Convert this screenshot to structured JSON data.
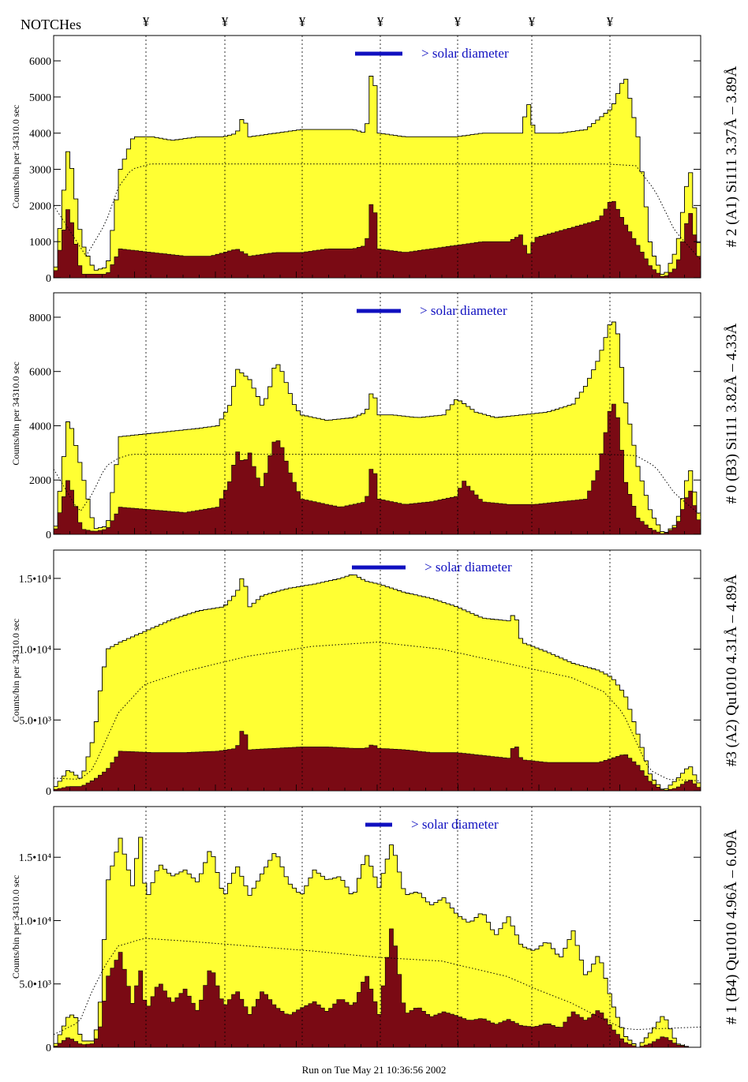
{
  "header": {
    "notches_label": "NOTCHes",
    "notch_symbol": "¥",
    "notch_count": 7
  },
  "footer": {
    "run_text": "Run on Tue May 21 10:36:56 2002"
  },
  "colors": {
    "total": "#ffff33",
    "background": "#7a0a14",
    "marker": "#1010c0"
  },
  "chart_data": [
    {
      "type": "area",
      "title": "# 2 (A1) Si111  3.37Å – 3.89Å",
      "ylabel": "Counts/bin per  34310.0 sec",
      "marker_label": "> solar diameter",
      "ylim": [
        0,
        6700
      ],
      "yticks": [
        0,
        1000,
        2000,
        3000,
        4000,
        5000,
        6000
      ],
      "ytick_labels": [
        "0",
        "1000",
        "2000",
        "3000",
        "4000",
        "5000",
        "6000"
      ],
      "series": [
        {
          "name": "total",
          "x": [
            0.0,
            0.02,
            0.04,
            0.06,
            0.08,
            0.1,
            0.12,
            0.15,
            0.18,
            0.22,
            0.26,
            0.28,
            0.29,
            0.3,
            0.34,
            0.38,
            0.42,
            0.46,
            0.48,
            0.49,
            0.5,
            0.54,
            0.58,
            0.62,
            0.66,
            0.7,
            0.72,
            0.73,
            0.74,
            0.78,
            0.82,
            0.86,
            0.88,
            0.9,
            0.92,
            0.94,
            0.96,
            0.98,
            1.0
          ],
          "values": [
            300,
            3700,
            1000,
            200,
            300,
            3000,
            3900,
            3900,
            3800,
            3900,
            3900,
            4000,
            4500,
            3900,
            4000,
            4100,
            4100,
            4100,
            4000,
            6100,
            4000,
            3900,
            3900,
            3900,
            4000,
            4000,
            4000,
            4900,
            4000,
            4000,
            4100,
            4700,
            5600,
            3900,
            800,
            0,
            800,
            3100,
            0
          ]
        },
        {
          "name": "background",
          "x": [
            0.0,
            0.02,
            0.04,
            0.06,
            0.08,
            0.1,
            0.15,
            0.2,
            0.24,
            0.26,
            0.28,
            0.3,
            0.34,
            0.38,
            0.42,
            0.46,
            0.48,
            0.49,
            0.5,
            0.54,
            0.58,
            0.62,
            0.66,
            0.7,
            0.72,
            0.73,
            0.74,
            0.78,
            0.8,
            0.84,
            0.86,
            0.88,
            0.9,
            0.92,
            0.94,
            0.96,
            0.98,
            1.0
          ],
          "values": [
            200,
            2000,
            100,
            100,
            100,
            800,
            700,
            600,
            600,
            700,
            800,
            600,
            700,
            700,
            800,
            800,
            900,
            2400,
            800,
            700,
            800,
            900,
            1000,
            1000,
            1200,
            600,
            1100,
            1300,
            1400,
            1600,
            2200,
            1500,
            900,
            300,
            0,
            300,
            1900,
            0
          ]
        },
        {
          "name": "model",
          "x": [
            0.0,
            0.05,
            0.08,
            0.1,
            0.12,
            0.15,
            0.2,
            0.3,
            0.5,
            0.7,
            0.85,
            0.9,
            0.93,
            0.96,
            1.0
          ],
          "values": [
            2000,
            600,
            1500,
            2500,
            3000,
            3150,
            3150,
            3150,
            3150,
            3150,
            3150,
            3100,
            2400,
            1300,
            500
          ]
        }
      ]
    },
    {
      "type": "area",
      "title": "# 0 (B3) Si111  3.82Å – 4.33Å",
      "ylabel": "Counts/bin per  34310.0 sec",
      "marker_label": "> solar diameter",
      "ylim": [
        0,
        8900
      ],
      "yticks": [
        0,
        2000,
        4000,
        6000,
        8000
      ],
      "ytick_labels": [
        "0",
        "2000",
        "4000",
        "6000",
        "8000"
      ],
      "series": [
        {
          "name": "total",
          "x": [
            0.0,
            0.02,
            0.04,
            0.06,
            0.08,
            0.1,
            0.14,
            0.18,
            0.22,
            0.25,
            0.27,
            0.28,
            0.3,
            0.32,
            0.33,
            0.34,
            0.35,
            0.37,
            0.38,
            0.4,
            0.42,
            0.46,
            0.48,
            0.49,
            0.5,
            0.52,
            0.56,
            0.6,
            0.62,
            0.65,
            0.68,
            0.72,
            0.76,
            0.8,
            0.82,
            0.84,
            0.86,
            0.87,
            0.88,
            0.9,
            0.92,
            0.94,
            0.96,
            0.98,
            1.0
          ],
          "values": [
            300,
            4400,
            2400,
            200,
            300,
            3600,
            3700,
            3800,
            3900,
            4000,
            4800,
            6100,
            5700,
            4700,
            5300,
            6400,
            6000,
            4700,
            4400,
            4300,
            4200,
            4300,
            4500,
            5400,
            4400,
            4400,
            4300,
            4400,
            5000,
            4500,
            4300,
            4400,
            4500,
            4800,
            5500,
            6500,
            8000,
            7300,
            5000,
            2500,
            800,
            0,
            400,
            2500,
            0
          ]
        },
        {
          "name": "background",
          "x": [
            0.0,
            0.02,
            0.04,
            0.06,
            0.08,
            0.1,
            0.15,
            0.2,
            0.25,
            0.27,
            0.28,
            0.29,
            0.3,
            0.31,
            0.32,
            0.33,
            0.34,
            0.35,
            0.36,
            0.38,
            0.4,
            0.44,
            0.48,
            0.49,
            0.5,
            0.54,
            0.58,
            0.62,
            0.63,
            0.64,
            0.66,
            0.7,
            0.74,
            0.78,
            0.82,
            0.84,
            0.86,
            0.87,
            0.88,
            0.9,
            0.92,
            0.94,
            0.96,
            0.98,
            1.0
          ],
          "values": [
            200,
            2100,
            200,
            100,
            200,
            1000,
            900,
            800,
            1000,
            2000,
            3100,
            2600,
            3000,
            2200,
            1700,
            2800,
            3600,
            3200,
            2400,
            1300,
            1200,
            1000,
            1200,
            2800,
            1300,
            1100,
            1200,
            1400,
            2000,
            1700,
            1200,
            1100,
            1100,
            1200,
            1300,
            2500,
            5000,
            4200,
            2000,
            600,
            200,
            0,
            300,
            1700,
            0
          ]
        },
        {
          "name": "model",
          "x": [
            0.0,
            0.04,
            0.06,
            0.08,
            0.1,
            0.12,
            0.15,
            0.3,
            0.5,
            0.7,
            0.85,
            0.9,
            0.93,
            0.96,
            1.0
          ],
          "values": [
            2400,
            800,
            1500,
            2500,
            2800,
            2950,
            2950,
            2950,
            2950,
            2950,
            2950,
            2900,
            2500,
            1500,
            700
          ]
        }
      ]
    },
    {
      "type": "area",
      "title": "#3 (A2) Qu1010  4.31Å – 4.89Å",
      "ylabel": "Counts/bin per  34310.0 sec",
      "marker_label": "> solar diameter",
      "ylim": [
        0,
        17000
      ],
      "yticks": [
        0,
        5000,
        10000,
        15000
      ],
      "ytick_labels": [
        "0",
        "5.0•10³",
        "1.0•10⁴",
        "1.5•10⁴"
      ],
      "series": [
        {
          "name": "total",
          "x": [
            0.0,
            0.02,
            0.04,
            0.06,
            0.07,
            0.08,
            0.1,
            0.14,
            0.18,
            0.22,
            0.26,
            0.28,
            0.29,
            0.3,
            0.32,
            0.36,
            0.4,
            0.44,
            0.46,
            0.48,
            0.5,
            0.54,
            0.58,
            0.62,
            0.66,
            0.7,
            0.71,
            0.72,
            0.76,
            0.8,
            0.84,
            0.86,
            0.88,
            0.9,
            0.92,
            0.94,
            0.96,
            0.98,
            1.0
          ],
          "values": [
            300,
            1500,
            800,
            4000,
            7500,
            10000,
            10500,
            11300,
            12100,
            12700,
            13000,
            14000,
            15300,
            13000,
            13800,
            14300,
            14600,
            15000,
            15300,
            14800,
            14600,
            14000,
            13600,
            13000,
            12200,
            12000,
            12600,
            10500,
            9800,
            9000,
            8500,
            8000,
            6800,
            4000,
            1000,
            0,
            800,
            1800,
            0
          ]
        },
        {
          "name": "background",
          "x": [
            0.0,
            0.02,
            0.04,
            0.06,
            0.08,
            0.1,
            0.15,
            0.2,
            0.25,
            0.28,
            0.29,
            0.3,
            0.34,
            0.38,
            0.42,
            0.46,
            0.48,
            0.49,
            0.5,
            0.54,
            0.58,
            0.62,
            0.66,
            0.7,
            0.71,
            0.72,
            0.76,
            0.8,
            0.84,
            0.86,
            0.88,
            0.9,
            0.92,
            0.94,
            0.96,
            0.98,
            1.0
          ],
          "values": [
            100,
            300,
            300,
            800,
            1500,
            2800,
            2700,
            2700,
            2800,
            3000,
            4600,
            2900,
            3000,
            3100,
            3100,
            3000,
            3000,
            3300,
            3000,
            2900,
            2700,
            2700,
            2500,
            2300,
            3400,
            2200,
            2000,
            2000,
            2000,
            2300,
            2600,
            1800,
            600,
            0,
            200,
            800,
            0
          ]
        },
        {
          "name": "model",
          "x": [
            0.0,
            0.04,
            0.06,
            0.08,
            0.1,
            0.14,
            0.2,
            0.3,
            0.4,
            0.5,
            0.6,
            0.7,
            0.8,
            0.85,
            0.88,
            0.9,
            0.92,
            0.95,
            1.0
          ],
          "values": [
            900,
            800,
            1500,
            3500,
            5500,
            7500,
            8400,
            9500,
            10200,
            10500,
            10000,
            9000,
            8000,
            7000,
            5500,
            3500,
            1500,
            800,
            700
          ]
        }
      ]
    },
    {
      "type": "area",
      "title": "# 1 (B4) Qu1010  4.96Å – 6.09Å",
      "ylabel": "Counts/bin per  34310.0 sec",
      "marker_label": "> solar diameter",
      "ylim": [
        0,
        19000
      ],
      "yticks": [
        0,
        5000,
        10000,
        15000
      ],
      "ytick_labels": [
        "0",
        "5.0•10³",
        "1.0•10⁴",
        "1.5•10⁴"
      ],
      "series": [
        {
          "name": "total",
          "x": [
            0.0,
            0.02,
            0.03,
            0.04,
            0.06,
            0.07,
            0.08,
            0.1,
            0.12,
            0.13,
            0.14,
            0.16,
            0.18,
            0.2,
            0.22,
            0.24,
            0.26,
            0.28,
            0.3,
            0.32,
            0.34,
            0.36,
            0.38,
            0.4,
            0.42,
            0.44,
            0.46,
            0.48,
            0.5,
            0.52,
            0.54,
            0.56,
            0.58,
            0.6,
            0.62,
            0.64,
            0.66,
            0.68,
            0.7,
            0.72,
            0.74,
            0.76,
            0.78,
            0.8,
            0.82,
            0.84,
            0.86,
            0.88,
            0.9,
            0.92,
            0.94,
            0.96,
            0.98,
            1.0
          ],
          "values": [
            300,
            2500,
            2600,
            500,
            500,
            4000,
            13000,
            16500,
            12500,
            17300,
            11500,
            14500,
            13500,
            14000,
            13000,
            15800,
            11800,
            14400,
            12000,
            13800,
            15500,
            13000,
            12000,
            14000,
            13200,
            13500,
            11800,
            15300,
            12600,
            16200,
            12000,
            12300,
            11200,
            11800,
            10500,
            9800,
            10700,
            8800,
            10300,
            8000,
            7600,
            8400,
            7000,
            9200,
            5500,
            7400,
            3500,
            900,
            0,
            1200,
            2600,
            300,
            0,
            0
          ]
        },
        {
          "name": "background",
          "x": [
            0.0,
            0.02,
            0.04,
            0.06,
            0.07,
            0.08,
            0.1,
            0.12,
            0.13,
            0.14,
            0.16,
            0.18,
            0.2,
            0.22,
            0.24,
            0.26,
            0.28,
            0.3,
            0.32,
            0.34,
            0.36,
            0.38,
            0.4,
            0.42,
            0.44,
            0.46,
            0.48,
            0.5,
            0.52,
            0.54,
            0.56,
            0.58,
            0.6,
            0.62,
            0.64,
            0.66,
            0.68,
            0.7,
            0.72,
            0.74,
            0.76,
            0.78,
            0.8,
            0.82,
            0.84,
            0.86,
            0.88,
            0.9,
            0.92,
            0.94,
            0.96,
            0.98,
            1.0
          ],
          "values": [
            100,
            800,
            200,
            300,
            1800,
            5500,
            7500,
            3200,
            6500,
            2800,
            5200,
            3500,
            4600,
            2800,
            6500,
            3200,
            4500,
            2600,
            4500,
            3200,
            2500,
            3100,
            3600,
            2800,
            3900,
            3200,
            5800,
            2600,
            9800,
            2600,
            3200,
            2400,
            2800,
            2500,
            2100,
            2300,
            1800,
            2200,
            1700,
            1600,
            1900,
            1500,
            2800,
            2100,
            3000,
            1500,
            400,
            0,
            300,
            900,
            200,
            0,
            0
          ]
        },
        {
          "name": "model",
          "x": [
            0.0,
            0.04,
            0.06,
            0.08,
            0.1,
            0.14,
            0.2,
            0.3,
            0.4,
            0.5,
            0.6,
            0.7,
            0.75,
            0.8,
            0.85,
            0.88,
            0.9,
            0.95,
            1.0
          ],
          "values": [
            1000,
            2000,
            4500,
            6500,
            8000,
            8600,
            8400,
            8000,
            7600,
            7100,
            6800,
            5600,
            4500,
            3500,
            2200,
            1500,
            1400,
            1500,
            1600
          ]
        }
      ]
    }
  ]
}
